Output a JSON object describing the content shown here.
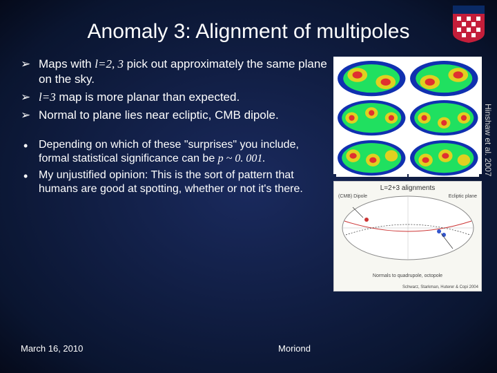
{
  "title": "Anomaly 3: Alignment of multipoles",
  "citation": "Hinshaw et al. 2007",
  "bullets_a": [
    {
      "pre": "Maps with ",
      "math": "l=2, 3",
      "post": " pick out approximately the same plane on the sky."
    },
    {
      "pre": "",
      "math": "l=3",
      "post": " map is more planar than expected."
    },
    {
      "pre": "Normal to plane lies near ecliptic, CMB dipole.",
      "math": "",
      "post": ""
    }
  ],
  "bullets_b": [
    {
      "pre": "Depending on which of these \"surprises\" you include, formal statistical significance can be ",
      "math": "p ~ 0. 001.",
      "post": ""
    },
    {
      "pre": "My unjustified opinion: This is the sort of pattern that humans are good at spotting, whether or not it's there.",
      "math": "",
      "post": ""
    }
  ],
  "footer": {
    "date": "March 16, 2010",
    "venue": "Moriond"
  },
  "align_panel": {
    "title": "L=2+3 alignments",
    "label_dipole": "(CMB) Dipole",
    "label_ecliptic": "Ecliptic plane",
    "label_normals": "Normals to quadrupole, octopole",
    "credit": "Schwarz, Starkman, Huterer & Copi 2004"
  },
  "maps": {
    "colors": {
      "bg": "#ffffff",
      "ring": "#1030b0",
      "mid": "#20e060",
      "hot": "#e03030",
      "cool": "#2060e0"
    }
  },
  "logo": {
    "shield_top": "#0a2a66",
    "shield_bottom": "#c41e3a",
    "pattern": "#ffffff"
  }
}
